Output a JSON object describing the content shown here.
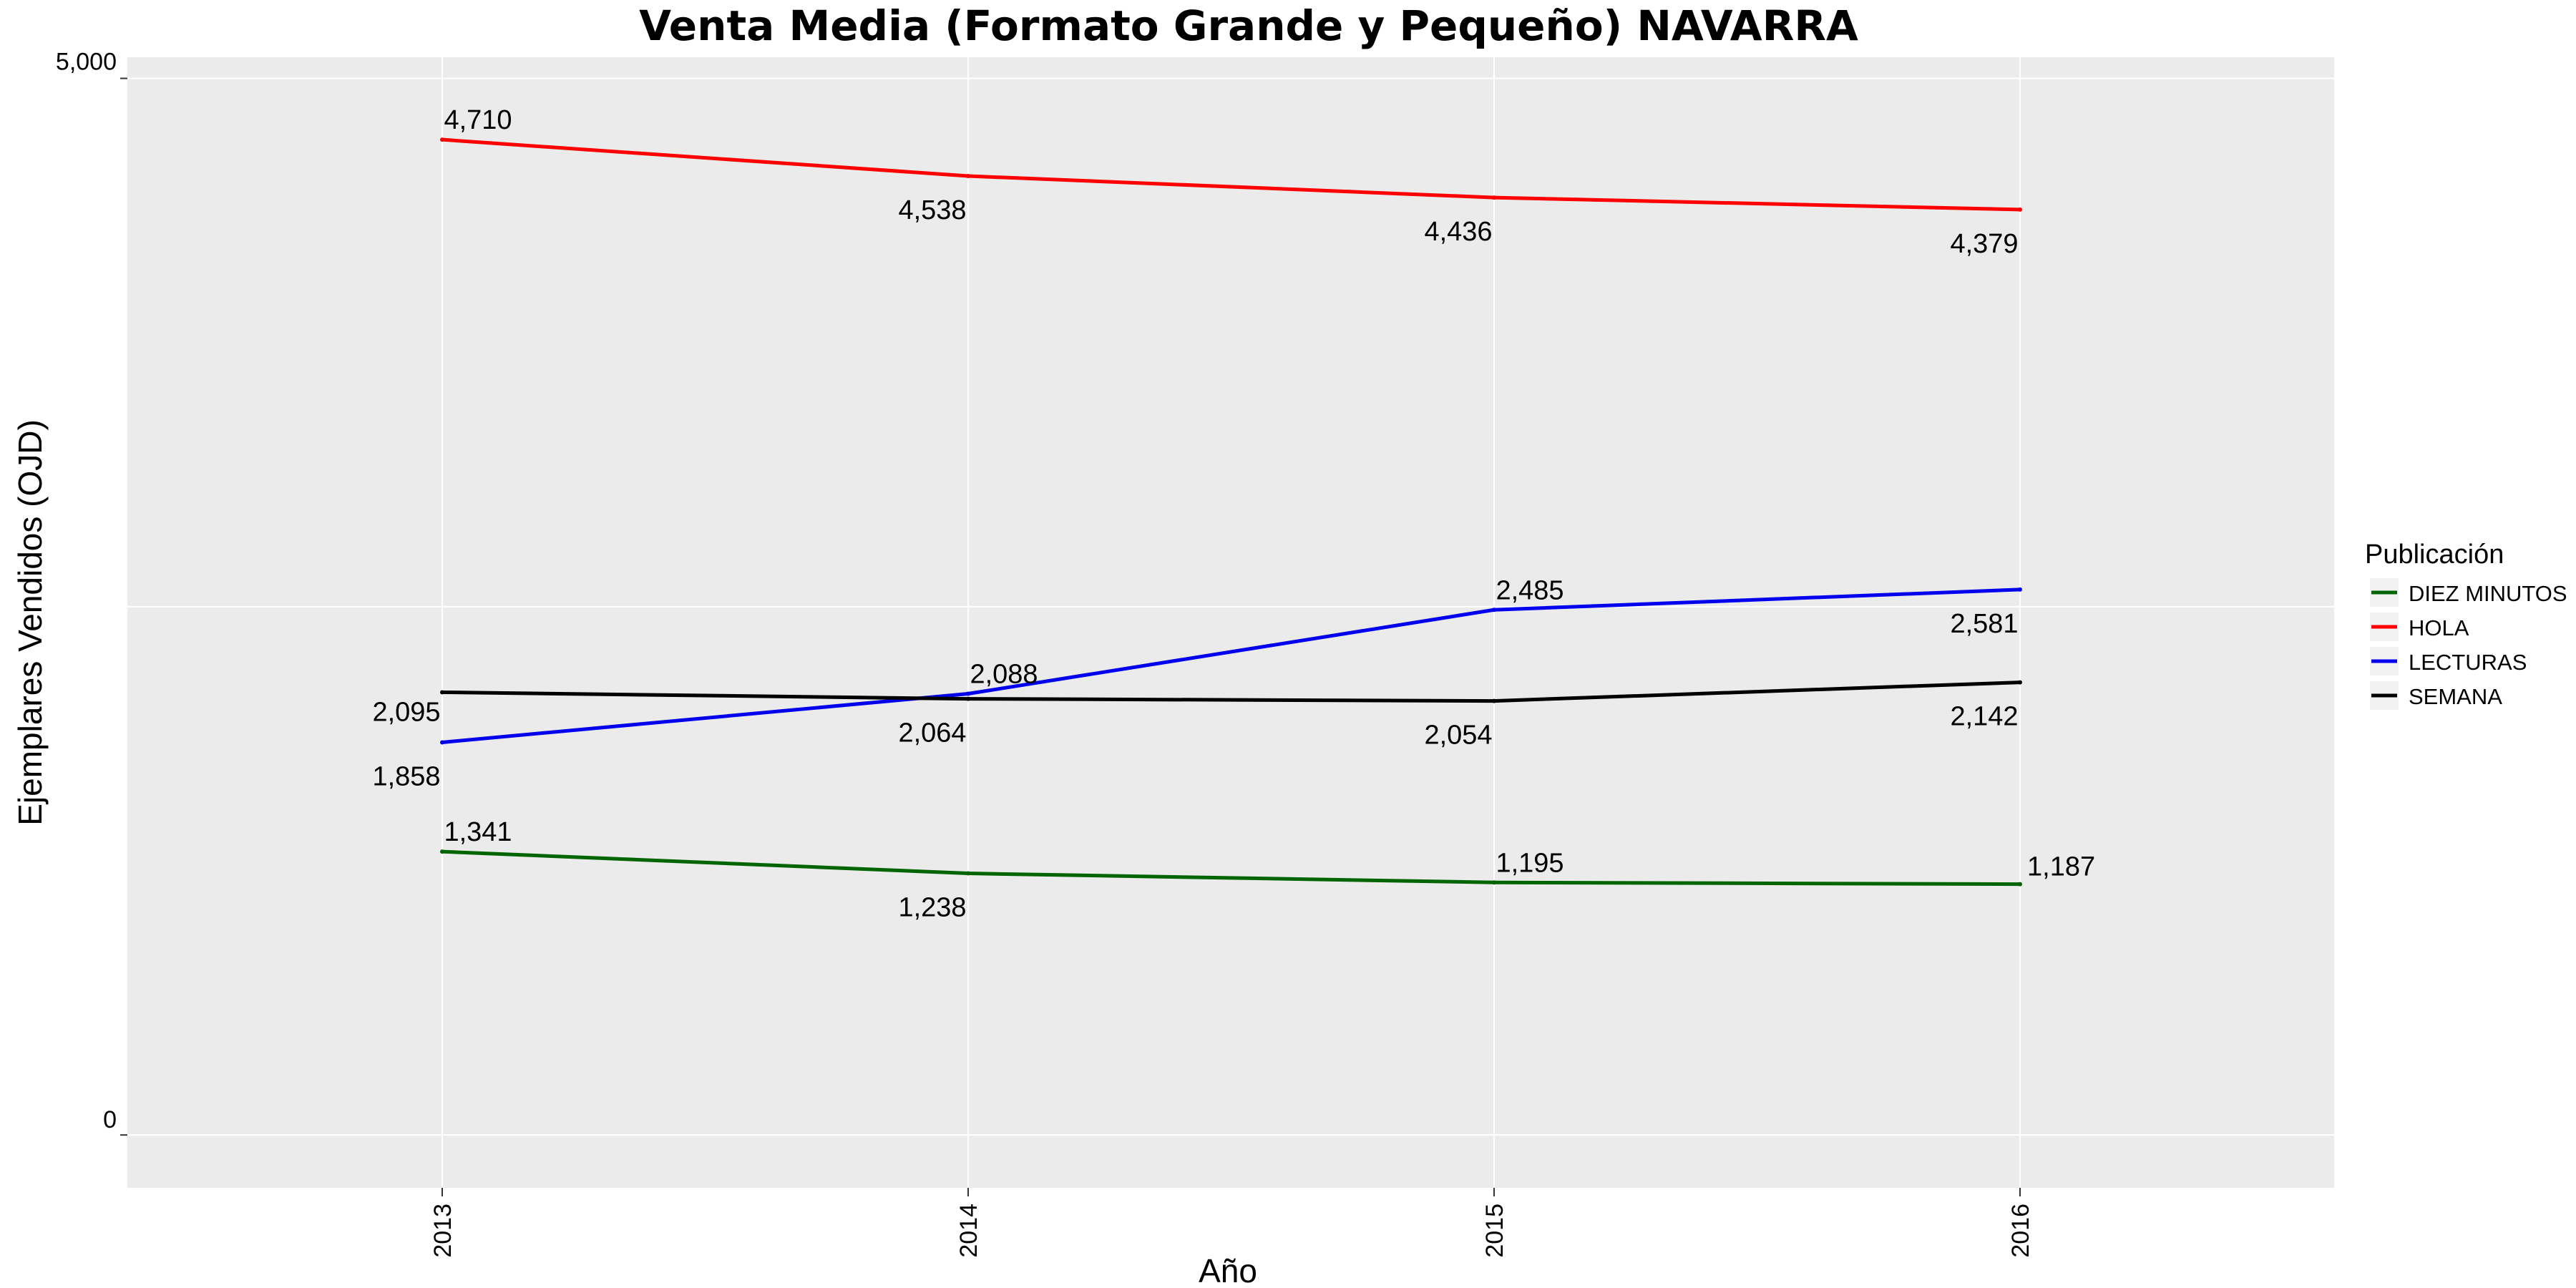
{
  "chart_data": {
    "type": "line",
    "title": "Venta Media (Formato Grande y Pequeño)  NAVARRA",
    "xlabel": "Año",
    "ylabel": "Ejemplares Vendidos (OJD)",
    "x": [
      "2013",
      "2014",
      "2015",
      "2016"
    ],
    "ylim": [
      -250,
      5100
    ],
    "yticks": [
      0,
      5000
    ],
    "ytick_labels": [
      "0",
      "5,000"
    ],
    "grid": true,
    "legend": {
      "title": "Publicación",
      "position": "right",
      "entries": [
        "DIEZ MINUTOS",
        "HOLA",
        "LECTURAS",
        "SEMANA"
      ]
    },
    "series": [
      {
        "name": "DIEZ MINUTOS",
        "color": "#006400",
        "values": [
          1341,
          1238,
          1195,
          1187
        ],
        "labels": [
          "1,341",
          "1,238",
          "1,195",
          "1,187"
        ],
        "label_positions": [
          "above",
          "below",
          "above",
          "right"
        ]
      },
      {
        "name": "HOLA",
        "color": "#ff0000",
        "values": [
          4710,
          4538,
          4436,
          4379
        ],
        "labels": [
          "4,710",
          "4,538",
          "4,436",
          "4,379"
        ],
        "label_positions": [
          "above",
          "below",
          "below",
          "below"
        ]
      },
      {
        "name": "LECTURAS",
        "color": "#0000ee",
        "values": [
          1858,
          2088,
          2485,
          2581
        ],
        "labels": [
          "1,858",
          "2,088",
          "2,485",
          "2,581"
        ],
        "label_positions": [
          "below",
          "above",
          "above",
          "below"
        ]
      },
      {
        "name": "SEMANA",
        "color": "#000000",
        "values": [
          2095,
          2064,
          2054,
          2142
        ],
        "labels": [
          "2,095",
          "2,064",
          "2,054",
          "2,142"
        ],
        "label_positions": [
          "left-below",
          "below",
          "below",
          "below"
        ]
      }
    ]
  }
}
